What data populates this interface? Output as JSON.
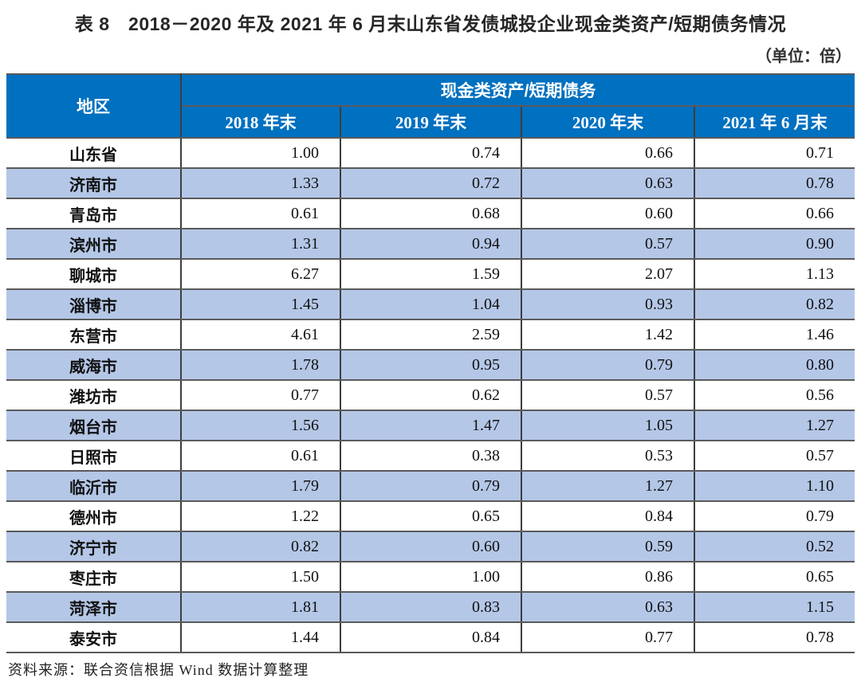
{
  "document": {
    "title": "表 8　2018－2020 年及 2021 年 6 月末山东省发债城投企业现金类资产/短期债务情况",
    "unit_note": "（单位：倍）",
    "source_note": "资料来源：联合资信根据 Wind 数据计算整理"
  },
  "table": {
    "region_header": "地区",
    "group_header": "现金类资产/短期债务",
    "period_headers": [
      "2018 年末",
      "2019 年末",
      "2020 年末",
      "2021 年 6 月末"
    ],
    "rows": [
      {
        "region": "山东省",
        "values": [
          "1.00",
          "0.74",
          "0.66",
          "0.71"
        ]
      },
      {
        "region": "济南市",
        "values": [
          "1.33",
          "0.72",
          "0.63",
          "0.78"
        ]
      },
      {
        "region": "青岛市",
        "values": [
          "0.61",
          "0.68",
          "0.60",
          "0.66"
        ]
      },
      {
        "region": "滨州市",
        "values": [
          "1.31",
          "0.94",
          "0.57",
          "0.90"
        ]
      },
      {
        "region": "聊城市",
        "values": [
          "6.27",
          "1.59",
          "2.07",
          "1.13"
        ]
      },
      {
        "region": "淄博市",
        "values": [
          "1.45",
          "1.04",
          "0.93",
          "0.82"
        ]
      },
      {
        "region": "东营市",
        "values": [
          "4.61",
          "2.59",
          "1.42",
          "1.46"
        ]
      },
      {
        "region": "威海市",
        "values": [
          "1.78",
          "0.95",
          "0.79",
          "0.80"
        ]
      },
      {
        "region": "潍坊市",
        "values": [
          "0.77",
          "0.62",
          "0.57",
          "0.56"
        ]
      },
      {
        "region": "烟台市",
        "values": [
          "1.56",
          "1.47",
          "1.05",
          "1.27"
        ]
      },
      {
        "region": "日照市",
        "values": [
          "0.61",
          "0.38",
          "0.53",
          "0.57"
        ]
      },
      {
        "region": "临沂市",
        "values": [
          "1.79",
          "0.79",
          "1.27",
          "1.10"
        ]
      },
      {
        "region": "德州市",
        "values": [
          "1.22",
          "0.65",
          "0.84",
          "0.79"
        ]
      },
      {
        "region": "济宁市",
        "values": [
          "0.82",
          "0.60",
          "0.59",
          "0.52"
        ]
      },
      {
        "region": "枣庄市",
        "values": [
          "1.50",
          "1.00",
          "0.86",
          "0.65"
        ]
      },
      {
        "region": "菏泽市",
        "values": [
          "1.81",
          "0.83",
          "0.63",
          "1.15"
        ]
      },
      {
        "region": "泰安市",
        "values": [
          "1.44",
          "0.84",
          "0.77",
          "0.78"
        ]
      }
    ]
  },
  "colors": {
    "header_bg": "#0070C0",
    "stripe_bg": "#B4C7E7",
    "horizontal_border": "#5a5a5a",
    "vertical_border": "#3d3d3d"
  }
}
